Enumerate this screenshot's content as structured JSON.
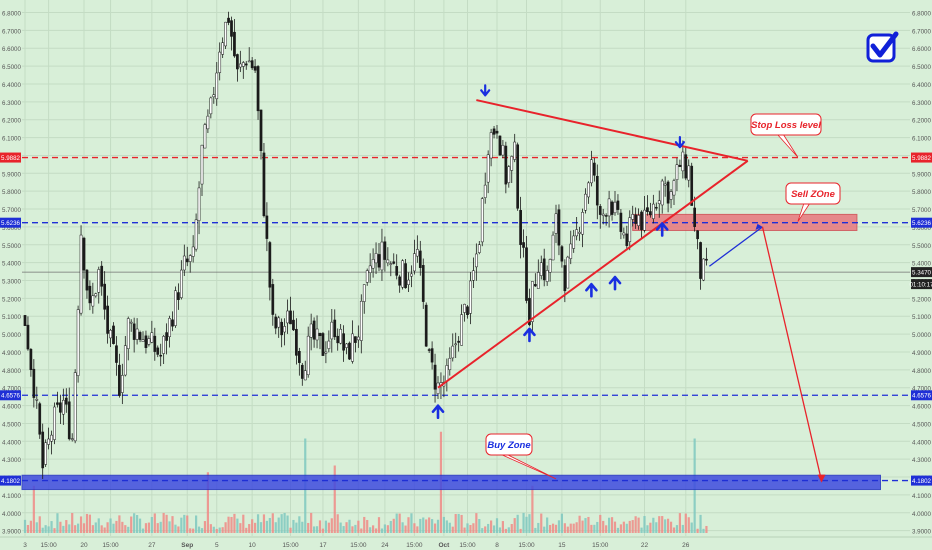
{
  "colors": {
    "background": "#d8efd8",
    "grid": "#c4dcc4",
    "candle_up": "#ffffff",
    "candle_down": "#1a1a1a",
    "wick": "#1a1a1a",
    "trend_line": "#e8232b",
    "stop_loss": "#e8232b",
    "support_line": "#1f2fd6",
    "sell_zone_fill": "#e9787e",
    "buy_zone_fill": "#3f4be0",
    "arrow_blue": "#1a2fe0",
    "price_line": "#707070",
    "volume_up": "#7fc8c0",
    "volume_down": "#f08a86",
    "check_mark": "#1020d8"
  },
  "icons": {
    "check": "checkbox-check-icon",
    "up_arrow": "blue-up-arrow-icon",
    "down_arrow": "blue-down-arrow-icon"
  },
  "chart_data": {
    "type": "candlestick",
    "y_axis": {
      "min": 3.87,
      "max": 6.87,
      "tick_labels": [
        "6.8000",
        "6.7000",
        "6.6000",
        "6.5000",
        "6.4000",
        "6.3000",
        "6.2000",
        "6.1000",
        "6.0000",
        "5.9000",
        "5.8000",
        "5.7000",
        "5.6000",
        "5.5000",
        "5.4000",
        "5.3000",
        "5.2000",
        "5.1000",
        "5.0000",
        "4.9000",
        "4.8000",
        "4.7000",
        "4.6000",
        "4.5000",
        "4.4000",
        "4.3000",
        "4.2000",
        "4.1000",
        "4.0000",
        "3.9000"
      ],
      "tick_values": [
        6.8,
        6.7,
        6.6,
        6.5,
        6.4,
        6.3,
        6.2,
        6.1,
        6.0,
        5.9,
        5.8,
        5.7,
        5.6,
        5.5,
        5.4,
        5.3,
        5.2,
        5.1,
        5.0,
        4.9,
        4.8,
        4.7,
        4.6,
        4.5,
        4.4,
        4.3,
        4.2,
        4.1,
        4.0,
        3.9
      ]
    },
    "x_axis": {
      "tick_labels": [
        "3",
        "15:00",
        "20",
        "15:00",
        "27",
        "Sep",
        "5",
        "10",
        "15:00",
        "17",
        "15:00",
        "24",
        "15:00",
        "Oct",
        "15:00",
        "8",
        "15:00",
        "15",
        "15:00",
        "22",
        "26"
      ],
      "tick_index": [
        0,
        8,
        20,
        29,
        43,
        55,
        65,
        77,
        90,
        101,
        113,
        122,
        132,
        142,
        150,
        160,
        170,
        182,
        195,
        210,
        224
      ]
    },
    "candle_count": 232,
    "price_path": [
      [
        0,
        5.08
      ],
      [
        3,
        4.72
      ],
      [
        6,
        4.25
      ],
      [
        10,
        4.52
      ],
      [
        13,
        4.62
      ],
      [
        16,
        4.42
      ],
      [
        19,
        5.58
      ],
      [
        22,
        5.12
      ],
      [
        25,
        5.34
      ],
      [
        28,
        5.02
      ],
      [
        32,
        4.72
      ],
      [
        35,
        5.05
      ],
      [
        38,
        5.02
      ],
      [
        42,
        4.95
      ],
      [
        46,
        4.88
      ],
      [
        50,
        5.12
      ],
      [
        54,
        5.38
      ],
      [
        57,
        5.42
      ],
      [
        60,
        6.02
      ],
      [
        63,
        6.25
      ],
      [
        66,
        6.62
      ],
      [
        69,
        6.78
      ],
      [
        72,
        6.45
      ],
      [
        75,
        6.55
      ],
      [
        78,
        6.48
      ],
      [
        81,
        5.72
      ],
      [
        84,
        5.05
      ],
      [
        87,
        5.02
      ],
      [
        90,
        5.1
      ],
      [
        94,
        4.82
      ],
      [
        97,
        4.98
      ],
      [
        101,
        4.92
      ],
      [
        105,
        5.05
      ],
      [
        109,
        4.88
      ],
      [
        113,
        5.02
      ],
      [
        117,
        5.38
      ],
      [
        121,
        5.45
      ],
      [
        125,
        5.38
      ],
      [
        129,
        5.32
      ],
      [
        133,
        5.45
      ],
      [
        137,
        4.85
      ],
      [
        140,
        4.7
      ],
      [
        143,
        4.75
      ],
      [
        147,
        5.02
      ],
      [
        151,
        5.22
      ],
      [
        154,
        5.55
      ],
      [
        157,
        6.08
      ],
      [
        160,
        6.18
      ],
      [
        163,
        5.88
      ],
      [
        166,
        6.0
      ],
      [
        168,
        5.55
      ],
      [
        171,
        5.12
      ],
      [
        174,
        5.42
      ],
      [
        177,
        5.32
      ],
      [
        180,
        5.62
      ],
      [
        183,
        5.32
      ],
      [
        186,
        5.48
      ],
      [
        189,
        5.72
      ],
      [
        192,
        5.95
      ],
      [
        195,
        5.62
      ],
      [
        198,
        5.78
      ],
      [
        201,
        5.62
      ],
      [
        204,
        5.52
      ],
      [
        207,
        5.68
      ],
      [
        210,
        5.62
      ],
      [
        213,
        5.72
      ],
      [
        216,
        5.85
      ],
      [
        219,
        5.78
      ],
      [
        222,
        5.95
      ],
      [
        225,
        5.92
      ],
      [
        227,
        5.58
      ],
      [
        229,
        5.35
      ],
      [
        231,
        5.34
      ]
    ],
    "volume_spikes": [
      [
        3,
        0.35
      ],
      [
        62,
        0.45
      ],
      [
        95,
        0.7
      ],
      [
        105,
        0.5
      ],
      [
        141,
        0.75
      ],
      [
        172,
        0.35
      ],
      [
        227,
        0.7
      ]
    ],
    "horizontal_levels": [
      {
        "name": "stop-loss",
        "value": 5.9882,
        "label": "5.9882",
        "style": "dashed",
        "color": "#e8232b"
      },
      {
        "name": "sell-level",
        "value": 5.6236,
        "label": "5.6236",
        "style": "dashed",
        "color": "#1f2fd6"
      },
      {
        "name": "support",
        "value": 4.6576,
        "label": "4.6576",
        "style": "dashed",
        "color": "#1f2fd6"
      },
      {
        "name": "buy-level",
        "value": 4.1802,
        "label": "4.1802",
        "style": "dashed",
        "color": "#1f2fd6"
      },
      {
        "name": "current-price",
        "value": 5.347,
        "label": "5.3470",
        "style": "solid",
        "color": "#707070"
      }
    ],
    "countdown_label": "01:10:17",
    "triangle": {
      "apex": [
        245,
        5.97
      ],
      "upper_start": [
        153,
        6.31
      ],
      "lower_start": [
        140,
        4.7
      ]
    },
    "zones": [
      {
        "name": "sell-zone",
        "x": [
          206,
          282
        ],
        "y": [
          5.58,
          5.67
        ]
      },
      {
        "name": "buy-zone",
        "x": [
          0,
          290
        ],
        "y": [
          4.13,
          4.21
        ]
      }
    ],
    "up_arrows": [
      [
        140,
        4.56
      ],
      [
        171,
        4.99
      ],
      [
        192,
        5.24
      ],
      [
        200,
        5.28
      ],
      [
        216,
        5.58
      ]
    ],
    "down_arrows": [
      [
        156,
        6.37
      ],
      [
        222,
        6.08
      ]
    ],
    "projection": [
      [
        232,
        5.38
      ],
      [
        250,
        5.6
      ],
      [
        270,
        4.18
      ]
    ],
    "callouts": [
      {
        "name": "stop-loss",
        "text": "Stop Loss level",
        "tip": [
          262,
          5.99
        ]
      },
      {
        "name": "sell-zone",
        "text": "Sell ZOne",
        "tip": [
          262,
          5.63
        ]
      },
      {
        "name": "buy-zone",
        "text": "Buy Zone",
        "tip": [
          180,
          4.19
        ]
      }
    ]
  }
}
